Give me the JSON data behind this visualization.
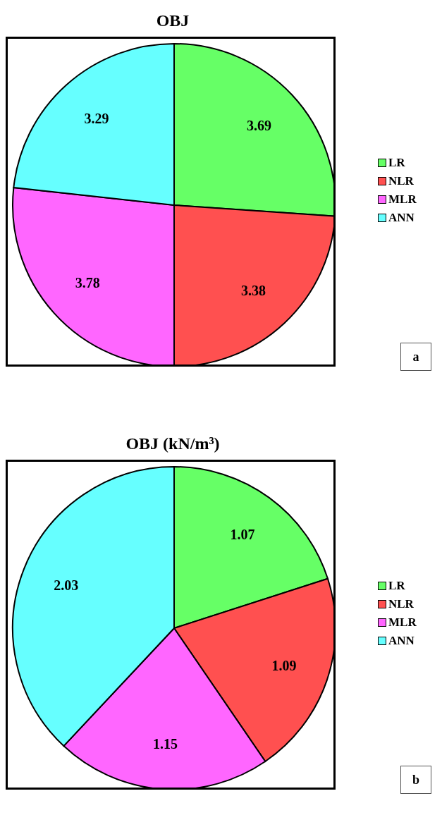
{
  "chart_data": [
    {
      "type": "pie",
      "title": "OBJ",
      "categories": [
        "LR",
        "NLR",
        "MLR",
        "ANN"
      ],
      "values": [
        3.69,
        3.38,
        3.78,
        3.29
      ],
      "colors": [
        "#66ff66",
        "#ff5050",
        "#ff66ff",
        "#66ffff"
      ],
      "data_labels": true,
      "legend": "right",
      "annotations": [
        "a"
      ]
    },
    {
      "type": "pie",
      "title": "OBJ (kN/m³)",
      "categories": [
        "LR",
        "NLR",
        "MLR",
        "ANN"
      ],
      "values": [
        1.07,
        1.09,
        1.15,
        2.03
      ],
      "colors": [
        "#66ff66",
        "#ff5050",
        "#ff66ff",
        "#66ffff"
      ],
      "data_labels": true,
      "legend": "right",
      "annotations": [
        "b"
      ]
    }
  ]
}
